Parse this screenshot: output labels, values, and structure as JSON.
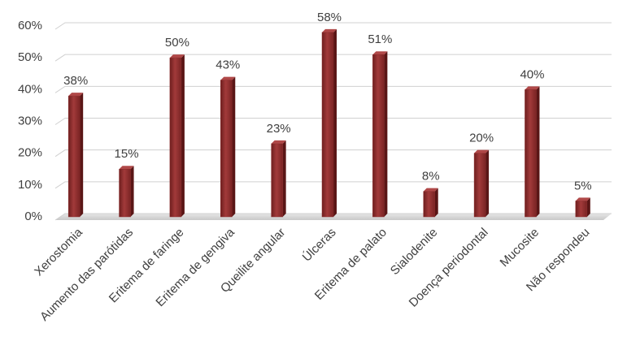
{
  "chart_data": {
    "type": "bar",
    "categories": [
      "Xerostomia",
      "Aumento das parótidas",
      "Eritema de faringe",
      "Eritema de gengiva",
      "Queilite angular",
      "Úlceras",
      "Eritema de palato",
      "Sialodenite",
      "Doença periodontal",
      "Mucosite",
      "Não respondeu"
    ],
    "values": [
      38,
      15,
      50,
      43,
      23,
      58,
      51,
      8,
      20,
      40,
      5
    ],
    "value_labels": [
      "38%",
      "15%",
      "50%",
      "43%",
      "23%",
      "58%",
      "51%",
      "8%",
      "20%",
      "40%",
      "5%"
    ],
    "color": "#8b2a2a",
    "ylim": [
      0,
      60
    ],
    "yticks": [
      {
        "value": 0,
        "label": "0%"
      },
      {
        "value": 10,
        "label": "10%"
      },
      {
        "value": 20,
        "label": "20%"
      },
      {
        "value": 30,
        "label": "30%"
      },
      {
        "value": 40,
        "label": "40%"
      },
      {
        "value": 50,
        "label": "50%"
      },
      {
        "value": 60,
        "label": "60%"
      }
    ],
    "grid": true
  }
}
